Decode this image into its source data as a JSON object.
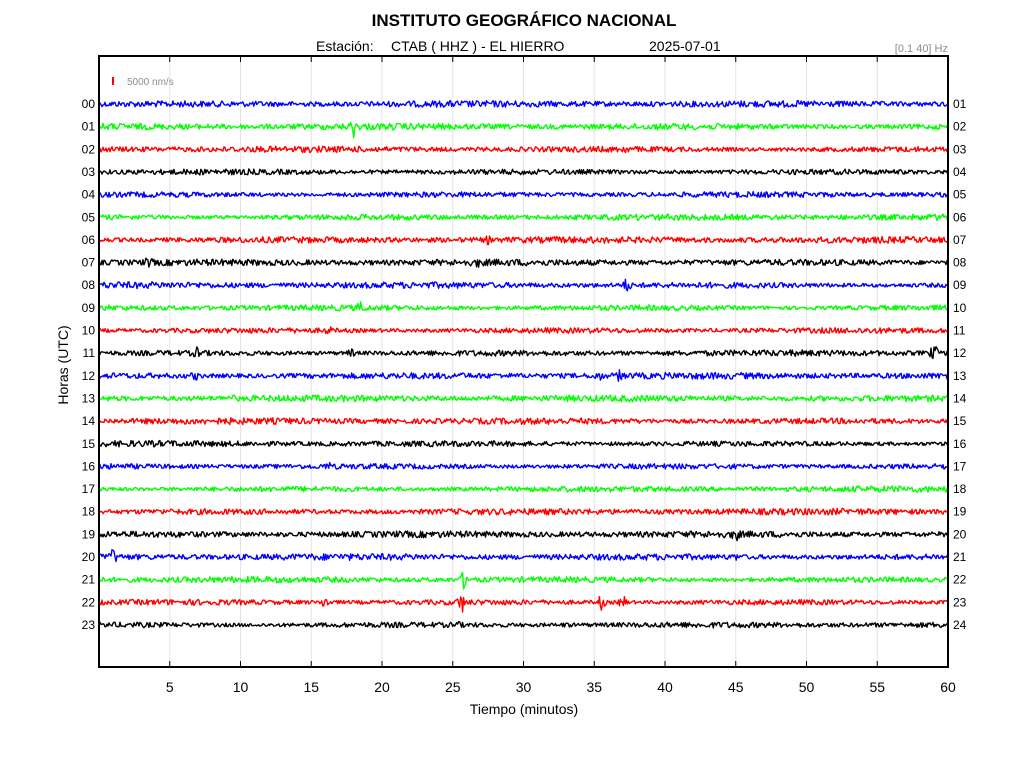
{
  "chart_data": {
    "type": "line",
    "title": "INSTITUTO GEOGRÁFICO NACIONAL",
    "subtitle": {
      "station_label": "Estación:",
      "station": "CTAB ( HHZ ) - EL HIERRO",
      "date": "2025-07-01"
    },
    "filter": "[0.1 40] Hz",
    "scale_label": "5000 nm/s",
    "xlabel": "Tiempo (minutos)",
    "ylabel": "Horas (UTC)",
    "xlim": [
      0,
      60
    ],
    "x_ticks": [
      5,
      10,
      15,
      20,
      25,
      30,
      35,
      40,
      45,
      50,
      55,
      60
    ],
    "grid": true,
    "trace_colors": [
      "#0000ff",
      "#00ff00",
      "#ff0000",
      "#000000"
    ],
    "scale_color": "#ff0000",
    "hours_left": [
      "00",
      "01",
      "02",
      "03",
      "04",
      "05",
      "06",
      "07",
      "08",
      "09",
      "10",
      "11",
      "12",
      "13",
      "14",
      "15",
      "16",
      "17",
      "18",
      "19",
      "20",
      "21",
      "22",
      "23"
    ],
    "hours_right": [
      "01",
      "02",
      "03",
      "04",
      "05",
      "06",
      "07",
      "08",
      "09",
      "10",
      "11",
      "12",
      "13",
      "14",
      "15",
      "16",
      "17",
      "18",
      "19",
      "20",
      "21",
      "22",
      "23",
      "24"
    ],
    "events": [
      {
        "hour": 1,
        "minute": 18.0,
        "amplitude": 2.2
      },
      {
        "hour": 2,
        "minute": 37.1,
        "amplitude": 1.3
      },
      {
        "hour": 6,
        "minute": 27.5,
        "amplitude": 1.4
      },
      {
        "hour": 7,
        "minute": 3.5,
        "amplitude": 1.5
      },
      {
        "hour": 7,
        "minute": 26.8,
        "amplitude": 1.3
      },
      {
        "hour": 8,
        "minute": 37.3,
        "amplitude": 2.2
      },
      {
        "hour": 9,
        "minute": 18.5,
        "amplitude": 1.6
      },
      {
        "hour": 10,
        "minute": 16.2,
        "amplitude": 1.5
      },
      {
        "hour": 11,
        "minute": 7.0,
        "amplitude": 1.8
      },
      {
        "hour": 11,
        "minute": 17.8,
        "amplitude": 1.8
      },
      {
        "hour": 11,
        "minute": 59.0,
        "amplitude": 2.4
      },
      {
        "hour": 12,
        "minute": 6.8,
        "amplitude": 1.6
      },
      {
        "hour": 12,
        "minute": 35.3,
        "amplitude": 1.6
      },
      {
        "hour": 12,
        "minute": 36.8,
        "amplitude": 1.6
      },
      {
        "hour": 13,
        "minute": 9.3,
        "amplitude": 1.3
      },
      {
        "hour": 16,
        "minute": 16.2,
        "amplitude": 1.4
      },
      {
        "hour": 19,
        "minute": 45.0,
        "amplitude": 1.6
      },
      {
        "hour": 20,
        "minute": 1.0,
        "amplitude": 1.9
      },
      {
        "hour": 20,
        "minute": 45.0,
        "amplitude": 1.3
      },
      {
        "hour": 21,
        "minute": 25.8,
        "amplitude": 2.6
      },
      {
        "hour": 22,
        "minute": 16.0,
        "amplitude": 2.4
      },
      {
        "hour": 22,
        "minute": 25.6,
        "amplitude": 2.6
      },
      {
        "hour": 22,
        "minute": 35.5,
        "amplitude": 2.6
      },
      {
        "hour": 22,
        "minute": 37.0,
        "amplitude": 2.8
      },
      {
        "hour": 23,
        "minute": 25.3,
        "amplitude": 1.3
      },
      {
        "hour": 23,
        "minute": 33.0,
        "amplitude": 1.3
      }
    ]
  }
}
